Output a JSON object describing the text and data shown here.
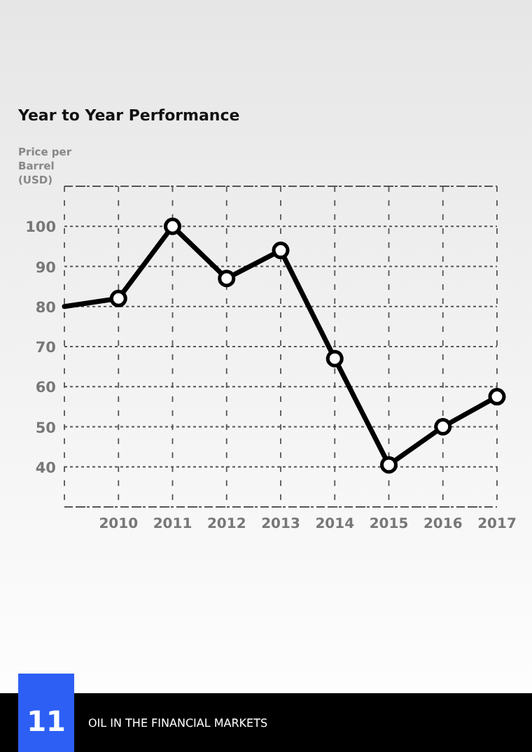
{
  "chart_data": {
    "type": "line",
    "title": "Year to Year Performance",
    "ylabel": "Price per Barrel (USD)",
    "annotations": [
      "11",
      "OIL IN THE FINANCIAL MARKETS"
    ],
    "series": [
      {
        "color": "#000000",
        "x": [
          2009,
          2010
        ],
        "values": [
          80,
          82
        ]
      },
      {
        "color": "#000000",
        "x": [
          2010,
          2011,
          2012,
          2013,
          2014,
          2015,
          2016,
          2017
        ],
        "values": [
          82,
          100,
          87,
          94,
          67,
          40.5,
          50,
          57.5
        ],
        "marker": "circle"
      }
    ],
    "xlim": [
      2009,
      2017
    ],
    "xticks": [
      {
        "value": 2009,
        "label": null
      },
      2010,
      2011,
      2012,
      2013,
      2014,
      2015,
      2016,
      2017
    ],
    "ylim": [
      30,
      110
    ],
    "yticks": [
      {
        "value": 30,
        "label": null
      },
      40,
      50,
      60,
      70,
      80,
      90,
      100,
      {
        "value": 110,
        "label": null
      }
    ],
    "grid": true,
    "line_style": "solid"
  }
}
